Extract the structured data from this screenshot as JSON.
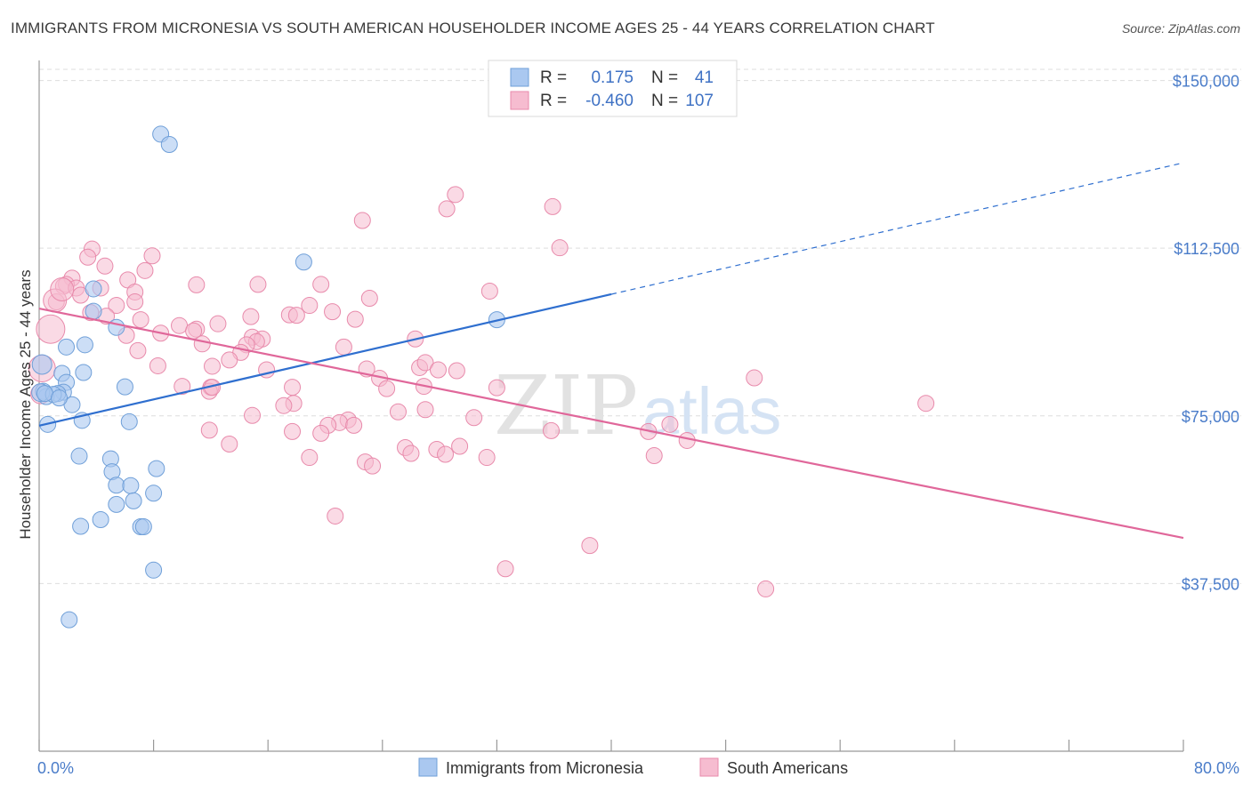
{
  "title": "IMMIGRANTS FROM MICRONESIA VS SOUTH AMERICAN HOUSEHOLDER INCOME AGES 25 - 44 YEARS CORRELATION CHART",
  "source": "Source: ZipAtlas.com",
  "watermark": {
    "zip": "ZIP",
    "atlas": "atlas"
  },
  "legend": {
    "rows": [
      {
        "r_label": "R =",
        "r_value": "0.175",
        "n_label": "N =",
        "n_value": "41"
      },
      {
        "r_label": "R =",
        "r_value": "-0.460",
        "n_label": "N =",
        "n_value": "107"
      }
    ]
  },
  "colors": {
    "blue_fill": "#aac8f0",
    "blue_stroke": "#6f9fd8",
    "blue_line": "#2f6fcf",
    "pink_fill": "#f6bcd0",
    "pink_stroke": "#e88aab",
    "pink_line": "#e0679a",
    "tick_text": "#4a7cc9",
    "grid": "#dddddd"
  },
  "chart_data": {
    "type": "scatter",
    "ylabel": "Householder Income Ages 25 - 44 years",
    "xlim": [
      0,
      80
    ],
    "ylim": [
      0,
      152500
    ],
    "x_tick_labels": [
      "0.0%",
      "80.0%"
    ],
    "y_ticks": [
      37500,
      75000,
      112500,
      150000
    ],
    "y_tick_labels": [
      "$37,500",
      "$75,000",
      "$112,500",
      "$150,000"
    ],
    "grid": true,
    "legend_position": "top-center",
    "series": [
      {
        "name": "Immigrants from Micronesia",
        "color": "#aac8f0",
        "trend": {
          "x0": 0,
          "y0": 72800,
          "x1": 40,
          "y1": 102200,
          "dash_to_x": 80,
          "dash_to_y": 131600
        },
        "points": [
          [
            8.5,
            138000
          ],
          [
            9.1,
            135700
          ],
          [
            18.5,
            109400
          ],
          [
            3.8,
            103400
          ],
          [
            3.8,
            98400
          ],
          [
            5.4,
            94800
          ],
          [
            3.2,
            90900
          ],
          [
            1.9,
            90400
          ],
          [
            3.1,
            84700
          ],
          [
            1.6,
            84500
          ],
          [
            1.9,
            82500
          ],
          [
            0.3,
            80500
          ],
          [
            1.7,
            80300
          ],
          [
            1.3,
            80000
          ],
          [
            0.5,
            79300
          ],
          [
            2.3,
            77500
          ],
          [
            0.6,
            73100
          ],
          [
            3.0,
            74000
          ],
          [
            6.3,
            73700
          ],
          [
            2.8,
            66000
          ],
          [
            5.0,
            65400
          ],
          [
            8.2,
            63200
          ],
          [
            5.1,
            62500
          ],
          [
            5.4,
            59500
          ],
          [
            6.4,
            59400
          ],
          [
            6.6,
            56000
          ],
          [
            8.0,
            57700
          ],
          [
            5.4,
            55200
          ],
          [
            4.3,
            51800
          ],
          [
            2.9,
            50300
          ],
          [
            7.1,
            50200
          ],
          [
            7.3,
            50200
          ],
          [
            8.0,
            40500
          ],
          [
            2.1,
            29400
          ],
          [
            32.0,
            96500
          ],
          [
            0.2,
            86500
          ],
          [
            0.1,
            80200
          ],
          [
            1.0,
            79800
          ],
          [
            6.0,
            81500
          ],
          [
            0.4,
            80000
          ],
          [
            1.4,
            79000
          ]
        ]
      },
      {
        "name": "South Americans",
        "color": "#f6bcd0",
        "trend": {
          "x0": 0,
          "y0": 99000,
          "x1": 80,
          "y1": 47700
        },
        "points": [
          [
            29.1,
            124500
          ],
          [
            28.5,
            121300
          ],
          [
            35.9,
            121800
          ],
          [
            22.6,
            118700
          ],
          [
            36.4,
            112600
          ],
          [
            3.7,
            112300
          ],
          [
            7.9,
            110800
          ],
          [
            3.4,
            110500
          ],
          [
            4.6,
            108500
          ],
          [
            7.4,
            107500
          ],
          [
            2.3,
            105800
          ],
          [
            6.2,
            105400
          ],
          [
            1.9,
            104400
          ],
          [
            11.0,
            104300
          ],
          [
            1.7,
            104000
          ],
          [
            2.6,
            103600
          ],
          [
            6.7,
            102700
          ],
          [
            19.7,
            104400
          ],
          [
            4.3,
            103600
          ],
          [
            15.3,
            104400
          ],
          [
            31.5,
            102900
          ],
          [
            2.9,
            102000
          ],
          [
            1.2,
            100500
          ],
          [
            23.1,
            101300
          ],
          [
            6.7,
            100500
          ],
          [
            5.4,
            99700
          ],
          [
            18.9,
            99700
          ],
          [
            12.5,
            95600
          ],
          [
            3.6,
            98100
          ],
          [
            17.5,
            97600
          ],
          [
            4.7,
            97300
          ],
          [
            20.5,
            98300
          ],
          [
            14.8,
            97200
          ],
          [
            18.0,
            97500
          ],
          [
            22.1,
            96600
          ],
          [
            7.1,
            96500
          ],
          [
            9.8,
            95200
          ],
          [
            11.0,
            94400
          ],
          [
            10.8,
            94000
          ],
          [
            8.5,
            93500
          ],
          [
            6.1,
            93000
          ],
          [
            14.9,
            92600
          ],
          [
            15.6,
            92200
          ],
          [
            15.2,
            91600
          ],
          [
            26.3,
            92200
          ],
          [
            11.4,
            91100
          ],
          [
            14.5,
            90900
          ],
          [
            21.3,
            90400
          ],
          [
            6.9,
            89600
          ],
          [
            14.1,
            89200
          ],
          [
            13.3,
            87500
          ],
          [
            8.3,
            86200
          ],
          [
            12.1,
            86100
          ],
          [
            15.9,
            85300
          ],
          [
            22.9,
            85500
          ],
          [
            29.2,
            85100
          ],
          [
            26.6,
            85800
          ],
          [
            27.0,
            86900
          ],
          [
            27.9,
            85300
          ],
          [
            23.8,
            83400
          ],
          [
            10.0,
            81600
          ],
          [
            12.0,
            81400
          ],
          [
            17.7,
            81400
          ],
          [
            11.9,
            80500
          ],
          [
            12.1,
            81400
          ],
          [
            24.3,
            81100
          ],
          [
            26.9,
            81600
          ],
          [
            32.0,
            81300
          ],
          [
            17.8,
            77800
          ],
          [
            17.1,
            77300
          ],
          [
            14.9,
            75100
          ],
          [
            27.0,
            76400
          ],
          [
            25.1,
            75900
          ],
          [
            21.6,
            74100
          ],
          [
            30.4,
            74600
          ],
          [
            21.0,
            73500
          ],
          [
            20.2,
            72900
          ],
          [
            22.0,
            72900
          ],
          [
            11.9,
            71800
          ],
          [
            17.7,
            71500
          ],
          [
            19.7,
            71100
          ],
          [
            35.8,
            71700
          ],
          [
            44.1,
            73100
          ],
          [
            42.6,
            71500
          ],
          [
            45.3,
            69500
          ],
          [
            13.3,
            68700
          ],
          [
            25.6,
            67900
          ],
          [
            27.8,
            67500
          ],
          [
            29.4,
            68200
          ],
          [
            28.4,
            66400
          ],
          [
            26.0,
            66600
          ],
          [
            18.9,
            65700
          ],
          [
            22.8,
            64700
          ],
          [
            23.3,
            63800
          ],
          [
            31.3,
            65700
          ],
          [
            43.0,
            66100
          ],
          [
            20.7,
            52600
          ],
          [
            38.5,
            46000
          ],
          [
            32.6,
            40800
          ],
          [
            50.0,
            83500
          ],
          [
            62.0,
            77800
          ],
          [
            50.8,
            36300
          ],
          [
            0.2,
            85600
          ],
          [
            0.1,
            79900
          ],
          [
            1.1,
            100800
          ],
          [
            0.8,
            94400
          ],
          [
            1.6,
            103300
          ]
        ]
      }
    ]
  }
}
